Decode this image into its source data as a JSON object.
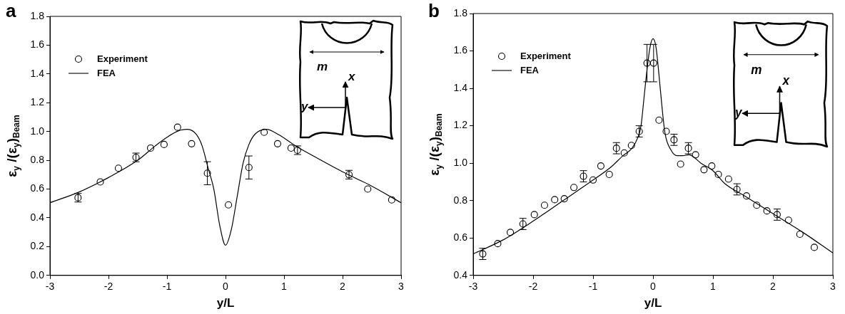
{
  "chart_data": [
    {
      "type": "scatter",
      "title": "a",
      "xlabel": "y/L",
      "ylabel": "ε$_{y}$ /(ε$_{y}$)$_{Beam}$",
      "xlim": [
        -3,
        3
      ],
      "xticks": [
        -3,
        -2,
        -1,
        0,
        1,
        2,
        3
      ],
      "ylim": [
        0,
        1.8
      ],
      "yticks": [
        {
          "value": 0,
          "label": "0.0"
        },
        {
          "value": 0.2,
          "label": "0.2"
        },
        {
          "value": 0.4,
          "label": "0.4"
        },
        {
          "value": 0.6,
          "label": "0.6"
        },
        {
          "value": 0.8,
          "label": "0.8"
        },
        {
          "value": 1.0,
          "label": "1.0"
        },
        {
          "value": 1.2,
          "label": "1.2"
        },
        {
          "value": 1.4,
          "label": "1.4"
        },
        {
          "value": 1.6,
          "label": "1.6"
        },
        {
          "value": 1.8,
          "label": "1.8"
        }
      ],
      "legend": "top left",
      "annotations": [
        "m",
        "x",
        "y"
      ],
      "series": [
        {
          "name": "Experiment",
          "type": "scatter",
          "marker": "circle",
          "color": "#000000",
          "x": [
            -2.52,
            -2.14,
            -1.83,
            -1.53,
            -1.28,
            -1.05,
            -0.82,
            -0.58,
            -0.31,
            0.05,
            0.4,
            0.66,
            0.89,
            1.12,
            1.23,
            2.11,
            2.43,
            2.84
          ],
          "values": [
            0.54,
            0.65,
            0.745,
            0.82,
            0.885,
            0.91,
            1.03,
            0.915,
            0.71,
            0.49,
            0.75,
            0.995,
            0.915,
            0.885,
            0.87,
            0.7,
            0.6,
            0.525
          ],
          "errors": [
            0.03,
            null,
            null,
            0.03,
            null,
            null,
            null,
            null,
            0.08,
            null,
            0.08,
            null,
            null,
            null,
            0.03,
            0.03,
            null,
            null
          ]
        },
        {
          "name": "FEA",
          "type": "line",
          "marker": "none",
          "color": "#000000",
          "x": [
            -3,
            -2.5,
            -2,
            -1.5,
            -1.2,
            -1,
            -0.8,
            -0.65,
            -0.5,
            -0.4,
            -0.3,
            -0.2,
            -0.1,
            0,
            0.1,
            0.2,
            0.3,
            0.4,
            0.5,
            0.7,
            0.9,
            1.2,
            1.5,
            2,
            2.5,
            3
          ],
          "values": [
            0.505,
            0.58,
            0.68,
            0.8,
            0.9,
            0.96,
            1.005,
            1.015,
            0.98,
            0.9,
            0.75,
            0.6,
            0.35,
            0.21,
            0.32,
            0.55,
            0.78,
            0.91,
            0.98,
            1.015,
            0.98,
            0.9,
            0.83,
            0.72,
            0.62,
            0.505
          ]
        }
      ]
    },
    {
      "type": "scatter",
      "title": "b",
      "xlabel": "y/L",
      "ylabel": "ε$_{y}$ /(ε$_{y}$)$_{Beam}$",
      "xlim": [
        -3,
        3
      ],
      "xticks": [
        -3,
        -2,
        -1,
        0,
        1,
        2,
        3
      ],
      "ylim": [
        0.4,
        1.8
      ],
      "yticks": [
        {
          "value": 0.4,
          "label": "0.4"
        },
        {
          "value": 0.6,
          "label": "0.6"
        },
        {
          "value": 0.8,
          "label": "0.8"
        },
        {
          "value": 1.0,
          "label": "1.0"
        },
        {
          "value": 1.2,
          "label": "1.2"
        },
        {
          "value": 1.4,
          "label": "1.4"
        },
        {
          "value": 1.6,
          "label": "1.6"
        },
        {
          "value": 1.8,
          "label": "1.8"
        }
      ],
      "legend": "top left",
      "annotations": [
        "m",
        "x",
        "y"
      ],
      "series": [
        {
          "name": "Experiment",
          "type": "scatter",
          "marker": "circle",
          "color": "#000000",
          "x": [
            -2.84,
            -2.59,
            -2.38,
            -2.17,
            -1.98,
            -1.81,
            -1.64,
            -1.48,
            -1.32,
            -1.16,
            -1.0,
            -0.87,
            -0.73,
            -0.61,
            -0.48,
            -0.36,
            -0.23,
            -0.1,
            0.01,
            0.1,
            0.22,
            0.35,
            0.46,
            0.59,
            0.71,
            0.85,
            0.98,
            1.09,
            1.26,
            1.4,
            1.56,
            1.73,
            1.9,
            2.07,
            2.26,
            2.45,
            2.69
          ],
          "values": [
            0.515,
            0.57,
            0.63,
            0.675,
            0.725,
            0.775,
            0.805,
            0.81,
            0.87,
            0.93,
            0.91,
            0.985,
            0.94,
            1.08,
            1.055,
            1.095,
            1.17,
            1.535,
            1.535,
            1.23,
            1.17,
            1.125,
            0.995,
            1.08,
            1.045,
            0.965,
            0.985,
            0.94,
            0.915,
            0.86,
            0.825,
            0.775,
            0.745,
            0.725,
            0.695,
            0.62,
            0.55
          ],
          "errors": [
            0.03,
            null,
            null,
            0.03,
            null,
            null,
            null,
            null,
            null,
            0.03,
            null,
            null,
            null,
            0.03,
            null,
            null,
            0.03,
            0.1,
            0.1,
            null,
            null,
            0.03,
            null,
            0.03,
            null,
            null,
            null,
            null,
            null,
            0.03,
            null,
            null,
            null,
            0.03,
            null,
            null,
            null
          ]
        },
        {
          "name": "FEA",
          "type": "line",
          "marker": "none",
          "color": "#000000",
          "x": [
            -3,
            -2.5,
            -2,
            -1.5,
            -1,
            -0.7,
            -0.5,
            -0.35,
            -0.25,
            -0.2,
            -0.15,
            -0.1,
            -0.05,
            0,
            0.05,
            0.1,
            0.15,
            0.2,
            0.3,
            0.4,
            0.5,
            0.6,
            0.8,
            1.0,
            1.2,
            1.5,
            2,
            2.5,
            3
          ],
          "values": [
            0.515,
            0.59,
            0.69,
            0.8,
            0.91,
            0.98,
            1.04,
            1.08,
            1.14,
            1.2,
            1.35,
            1.5,
            1.62,
            1.665,
            1.62,
            1.47,
            1.3,
            1.16,
            1.07,
            1.04,
            1.04,
            1.045,
            1.0,
            0.96,
            0.89,
            0.83,
            0.73,
            0.63,
            0.52
          ]
        }
      ]
    }
  ]
}
